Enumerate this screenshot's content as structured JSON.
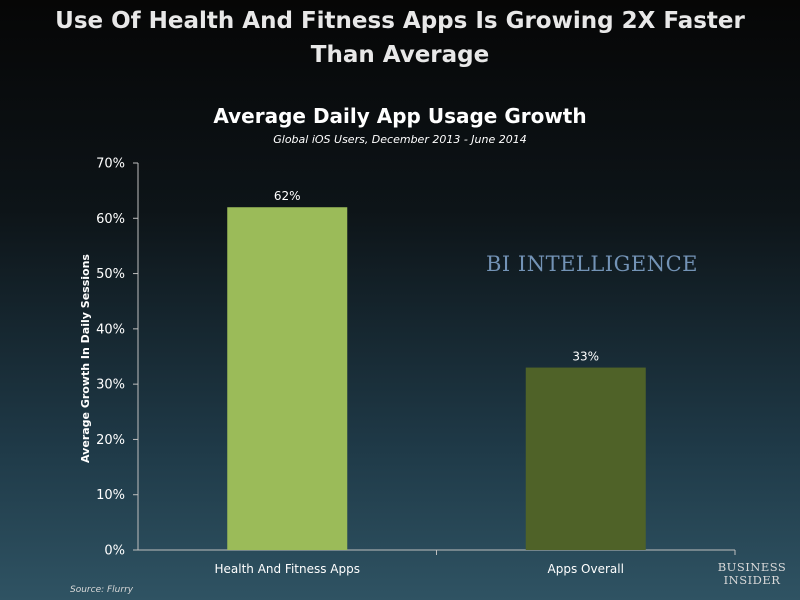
{
  "headline": {
    "line1": "Use Of Health And Fitness Apps Is Growing 2X Faster",
    "line2": "Than Average"
  },
  "watermark": "BI INTELLIGENCE",
  "source": "Source: Flurry",
  "brand": {
    "line1": "BUSINESS",
    "line2": "INSIDER"
  },
  "colors": {
    "bar_health": "#9bbb59",
    "bar_overall": "#4f6228",
    "axis": "#bfbfbf"
  },
  "chart_data": {
    "type": "bar",
    "title": "Average Daily App Usage Growth",
    "subtitle": "Global iOS Users, December 2013 - June 2014",
    "xlabel": "",
    "ylabel": "Average Growth In Daily Sessions",
    "categories": [
      "Health And Fitness Apps",
      "Apps Overall"
    ],
    "values": [
      62,
      33
    ],
    "data_labels": [
      "62%",
      "33%"
    ],
    "ylim": [
      0,
      70
    ],
    "yticks": [
      0,
      10,
      20,
      30,
      40,
      50,
      60,
      70
    ],
    "ytick_labels": [
      "0%",
      "10%",
      "20%",
      "30%",
      "40%",
      "50%",
      "60%",
      "70%"
    ],
    "grid": false,
    "legend": "none"
  }
}
